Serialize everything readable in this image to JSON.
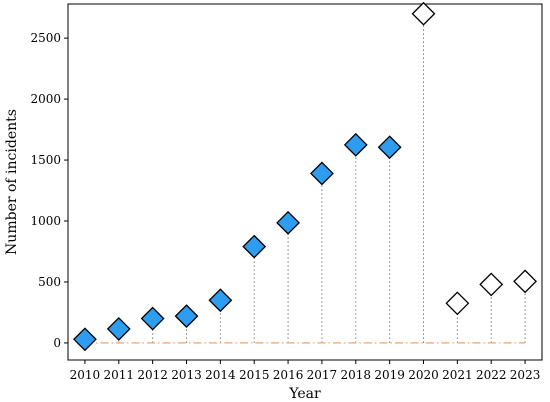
{
  "chart_data": {
    "type": "scatter",
    "title": "",
    "xlabel": "Year",
    "ylabel": "Number of incidents",
    "ylim": [
      -140,
      2780
    ],
    "xlim": [
      2009.5,
      2023.5
    ],
    "x": [
      2010,
      2011,
      2012,
      2013,
      2014,
      2015,
      2016,
      2017,
      2018,
      2019,
      2020,
      2021,
      2022,
      2023
    ],
    "x_tick_labels": [
      "2010",
      "2011",
      "2012",
      "2013",
      "2014",
      "2015",
      "2016",
      "2017",
      "2018",
      "2019",
      "2020",
      "2021",
      "2022",
      "2023"
    ],
    "y_ticks": [
      0,
      500,
      1000,
      1500,
      2000,
      2500
    ],
    "y_tick_labels": [
      "0",
      "500",
      "1000",
      "1500",
      "2000",
      "2500"
    ],
    "series": [
      {
        "style": "filled",
        "color": "#2e9df0",
        "x": [
          2010,
          2011,
          2012,
          2013,
          2014,
          2015,
          2016,
          2017,
          2018,
          2019
        ],
        "values": [
          30,
          115,
          200,
          220,
          350,
          790,
          985,
          1390,
          1625,
          1605
        ]
      },
      {
        "style": "hollow",
        "color": "#ffffff",
        "x": [
          2020,
          2021,
          2022,
          2023
        ],
        "values": [
          2700,
          325,
          480,
          505
        ]
      }
    ],
    "baseline": {
      "value": 0,
      "color": "#f5b27a",
      "style": "dash-dot"
    },
    "stem_color": "#7a7a7a",
    "grid": false,
    "legend": "none"
  }
}
